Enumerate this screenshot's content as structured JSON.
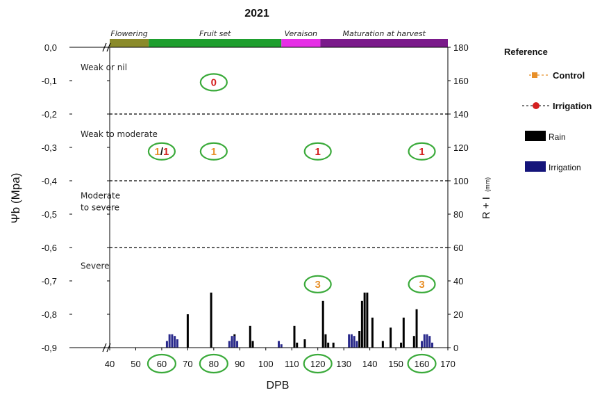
{
  "chart_data": {
    "type": "bar",
    "title": "2021",
    "xlabel": "DPB",
    "ylabel_left": "Ψb (Mpa)",
    "ylabel_right": "R + I",
    "ylabel_right_unit": "(mm)",
    "xlim": [
      30,
      170
    ],
    "ylim_left": [
      -0.9,
      0.0
    ],
    "ylim_right": [
      0,
      180
    ],
    "x_ticks": [
      "40",
      "50",
      "60",
      "70",
      "80",
      "90",
      "100",
      "110",
      "120",
      "130",
      "140",
      "150",
      "160",
      "170"
    ],
    "x_tick_values": [
      40,
      50,
      60,
      70,
      80,
      90,
      100,
      110,
      120,
      130,
      140,
      150,
      160,
      170
    ],
    "circled_x_ticks": [
      60,
      80,
      120,
      160
    ],
    "y_left_ticks": [
      "0,0",
      "-0,1",
      "-0,2",
      "-0,3",
      "-0,4",
      "-0,5",
      "-0,6",
      "-0,7",
      "-0,8",
      "-0,9"
    ],
    "y_left_tick_values": [
      0.0,
      -0.1,
      -0.2,
      -0.3,
      -0.4,
      -0.5,
      -0.6,
      -0.7,
      -0.8,
      -0.9
    ],
    "y_right_ticks": [
      "180",
      "160",
      "140",
      "120",
      "100",
      "80",
      "60",
      "40",
      "20",
      "0"
    ],
    "y_right_tick_values": [
      180,
      160,
      140,
      120,
      100,
      80,
      60,
      40,
      20,
      0
    ],
    "thresholds": [
      -0.2,
      -0.4,
      -0.6
    ],
    "zones": [
      {
        "lines": [
          "Weak or nil"
        ],
        "y": -0.06
      },
      {
        "lines": [
          "Weak to moderate"
        ],
        "y": -0.26
      },
      {
        "lines": [
          "Moderate",
          "to severe"
        ],
        "y": -0.445
      },
      {
        "lines": [
          "Severe"
        ],
        "y": -0.655
      }
    ],
    "phases": [
      {
        "name": "Flowering",
        "start": 40,
        "end": 55,
        "color": "#8a8a2a"
      },
      {
        "name": "Fruit set",
        "start": 55,
        "end": 106,
        "color": "#1e9e2e"
      },
      {
        "name": "Veraison",
        "start": 106,
        "end": 121,
        "color": "#e62ee6"
      },
      {
        "name": "Maturation at harvest",
        "start": 121,
        "end": 170,
        "color": "#7a1a8a"
      }
    ],
    "rain": {
      "x": [
        70,
        79,
        87,
        88,
        94,
        95,
        111,
        112,
        115,
        122,
        123,
        124,
        126,
        133,
        136,
        137,
        138,
        139,
        141,
        145,
        148,
        152,
        153,
        157,
        158,
        162
      ],
      "values": [
        20,
        33,
        5,
        8,
        13,
        4,
        13,
        3,
        5,
        28,
        8,
        3,
        3,
        5,
        10,
        28,
        33,
        33,
        18,
        4,
        12,
        3,
        18,
        7,
        23,
        5
      ]
    },
    "irrigation": {
      "x": [
        62,
        63,
        64,
        65,
        66,
        86,
        87,
        88,
        89,
        105,
        106,
        132,
        133,
        134,
        135,
        160,
        161,
        162,
        163,
        164
      ],
      "values": [
        4,
        8,
        8,
        7,
        5,
        4,
        7,
        7,
        4,
        4,
        2,
        8,
        8,
        7,
        4,
        4,
        8,
        8,
        7,
        3
      ]
    },
    "annotations": [
      {
        "text": "0",
        "x": 80,
        "y": -0.105,
        "style": "irrigation"
      },
      {
        "text": "1",
        "x": 60,
        "y": -0.312,
        "style": "split",
        "text2": "1"
      },
      {
        "text": "1",
        "x": 80,
        "y": -0.312,
        "style": "control"
      },
      {
        "text": "1",
        "x": 120,
        "y": -0.312,
        "style": "irrigation"
      },
      {
        "text": "1",
        "x": 160,
        "y": -0.312,
        "style": "irrigation"
      },
      {
        "text": "3",
        "x": 120,
        "y": -0.71,
        "style": "control"
      },
      {
        "text": "3",
        "x": 160,
        "y": -0.71,
        "style": "control"
      }
    ],
    "legend": {
      "title": "Reference",
      "items": [
        {
          "label": "Control",
          "kind": "square-dash",
          "color": "#e8902a",
          "bold": true
        },
        {
          "label": "Irrigation",
          "kind": "circle-dash",
          "color": "#d42020",
          "bold": true
        },
        {
          "label": "Rain",
          "kind": "box",
          "color": "#000000",
          "bold": false
        },
        {
          "label": "Irrigation",
          "kind": "box",
          "color": "#14147a",
          "bold": false
        }
      ]
    },
    "colors": {
      "rain": "#000000",
      "irrigation": "#2a2a8c",
      "control": "#e8902a",
      "irrigation_marker": "#d42020",
      "ellipse": "#3aaa3a"
    }
  }
}
